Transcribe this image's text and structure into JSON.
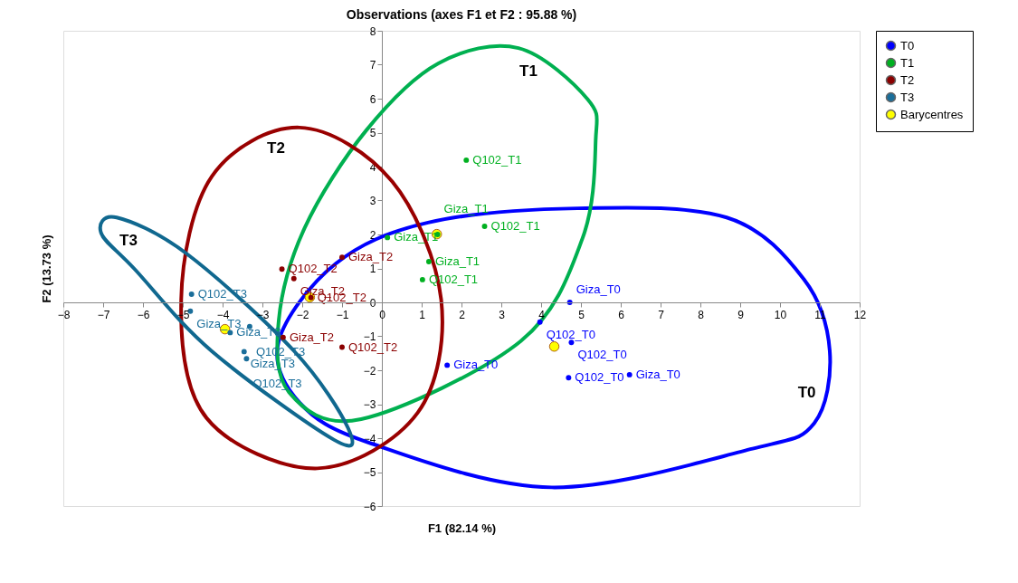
{
  "chart_data": {
    "type": "scatter",
    "title": "Observations (axes F1 et F2 : 95.88 %)",
    "xlabel": "F1 (82.14 %)",
    "ylabel": "F2 (13.73 %)",
    "xlim": [
      -8,
      12
    ],
    "ylim": [
      -6,
      8
    ],
    "xticks": [
      -8,
      -7,
      -6,
      -5,
      -4,
      -3,
      -2,
      -1,
      0,
      1,
      2,
      3,
      4,
      5,
      6,
      7,
      8,
      9,
      10,
      11,
      12
    ],
    "yticks": [
      -6,
      -5,
      -4,
      -3,
      -2,
      -1,
      0,
      1,
      2,
      3,
      4,
      5,
      6,
      7,
      8
    ],
    "grid": false,
    "legend": "right",
    "marker": "circle",
    "series": [
      {
        "name": "T0",
        "color": "#0000ff",
        "x": [
          4.72,
          3.97,
          4.76,
          1.64,
          4.69,
          6.22
        ],
        "values": [
          0,
          -0.58,
          -1.18,
          -1.85,
          -2.22,
          -2.13
        ],
        "value_labels": [
          "Giza_T0",
          "Q102_T0",
          "Q102_T0",
          "Giza_T0",
          "Q102_T0",
          "Giza_T0"
        ]
      },
      {
        "name": "T1",
        "color": "#00b020",
        "x": [
          2.12,
          2.58,
          0.14,
          1.18,
          1.02,
          1.4
        ],
        "values": [
          4.19,
          2.24,
          1.91,
          1.2,
          0.67,
          2.0
        ],
        "value_labels": [
          "Q102_T1",
          "Q102_T1",
          "Giza_T1",
          "Giza_T1",
          "Q102_T1",
          "Giza_T1"
        ]
      },
      {
        "name": "T2",
        "color": "#8b0000",
        "x": [
          -2.51,
          -1.0,
          -2.21,
          -1.78,
          -2.48,
          -1.0
        ],
        "values": [
          0.98,
          1.33,
          0.7,
          0.14,
          -1.03,
          -1.32
        ],
        "value_labels": [
          "Q102_T2",
          "Giza_T2",
          "Giza_T2",
          "Q102_T2",
          "Giza_T2",
          "Q102_T2"
        ]
      },
      {
        "name": "T3",
        "color": "#1a6e9a",
        "x": [
          -4.78,
          -4.81,
          -3.32,
          -3.81,
          -3.46,
          -3.4
        ],
        "values": [
          0.24,
          -0.26,
          -0.71,
          -0.89,
          -1.45,
          -1.66
        ],
        "value_labels": [
          "Q102_T3",
          "Giza_T3",
          "Q102_T3",
          "Giza_T3",
          "Giza_T3",
          "Q102_T3"
        ]
      },
      {
        "name": "Barycentres",
        "color": "#ffff00",
        "x": [
          4.33,
          1.38,
          -1.81,
          -3.94
        ],
        "values": [
          -1.3,
          2.01,
          0.15,
          -0.79
        ]
      }
    ],
    "annotations": [
      "T0",
      "T1",
      "T2",
      "T3"
    ]
  }
}
